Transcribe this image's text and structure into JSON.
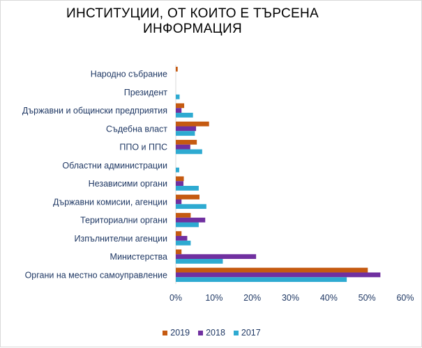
{
  "chart_data": {
    "type": "bar",
    "orientation": "horizontal",
    "title": "ИНСТИТУЦИИ, ОТ КОИТО Е ТЪРСЕНА ИНФОРМАЦИЯ",
    "title_lines": [
      "ИНСТИТУЦИИ, ОТ КОИТО Е ТЪРСЕНА",
      "ИНФОРМАЦИЯ"
    ],
    "categories": [
      "Народно събрание",
      "Президент",
      "Държавни и общински предприятия",
      "Съдебна власт",
      "ППО и ППС",
      "Областни администрации",
      "Независими органи",
      "Държавни комисии, агенции",
      "Териториални органи",
      "Изпълнителни агенции",
      "Министерства",
      "Органи на местно самоуправление"
    ],
    "series": [
      {
        "name": "2019",
        "color": "#c55a11",
        "values": [
          0.5,
          0,
          2.2,
          8.7,
          5.5,
          0,
          2.1,
          6.2,
          3.9,
          1.5,
          1.5,
          50.2
        ]
      },
      {
        "name": "2018",
        "color": "#7030a0",
        "values": [
          0,
          0,
          1.5,
          5.3,
          3.8,
          0,
          2.0,
          1.5,
          7.7,
          3.0,
          21.0,
          53.5
        ]
      },
      {
        "name": "2017",
        "color": "#2eaad1",
        "values": [
          0,
          1.0,
          4.5,
          5.0,
          6.9,
          0.9,
          6.0,
          8.0,
          6.0,
          3.9,
          12.3,
          44.7
        ]
      }
    ],
    "legend_order": [
      "2019",
      "2018",
      "2017"
    ],
    "xlim": [
      0,
      60
    ],
    "x_ticks": [
      "0%",
      "10%",
      "20%",
      "30%",
      "40%",
      "50%",
      "60%"
    ],
    "x_tick_values": [
      0,
      10,
      20,
      30,
      40,
      50,
      60
    ],
    "legend_position": "bottom",
    "grid": false
  }
}
